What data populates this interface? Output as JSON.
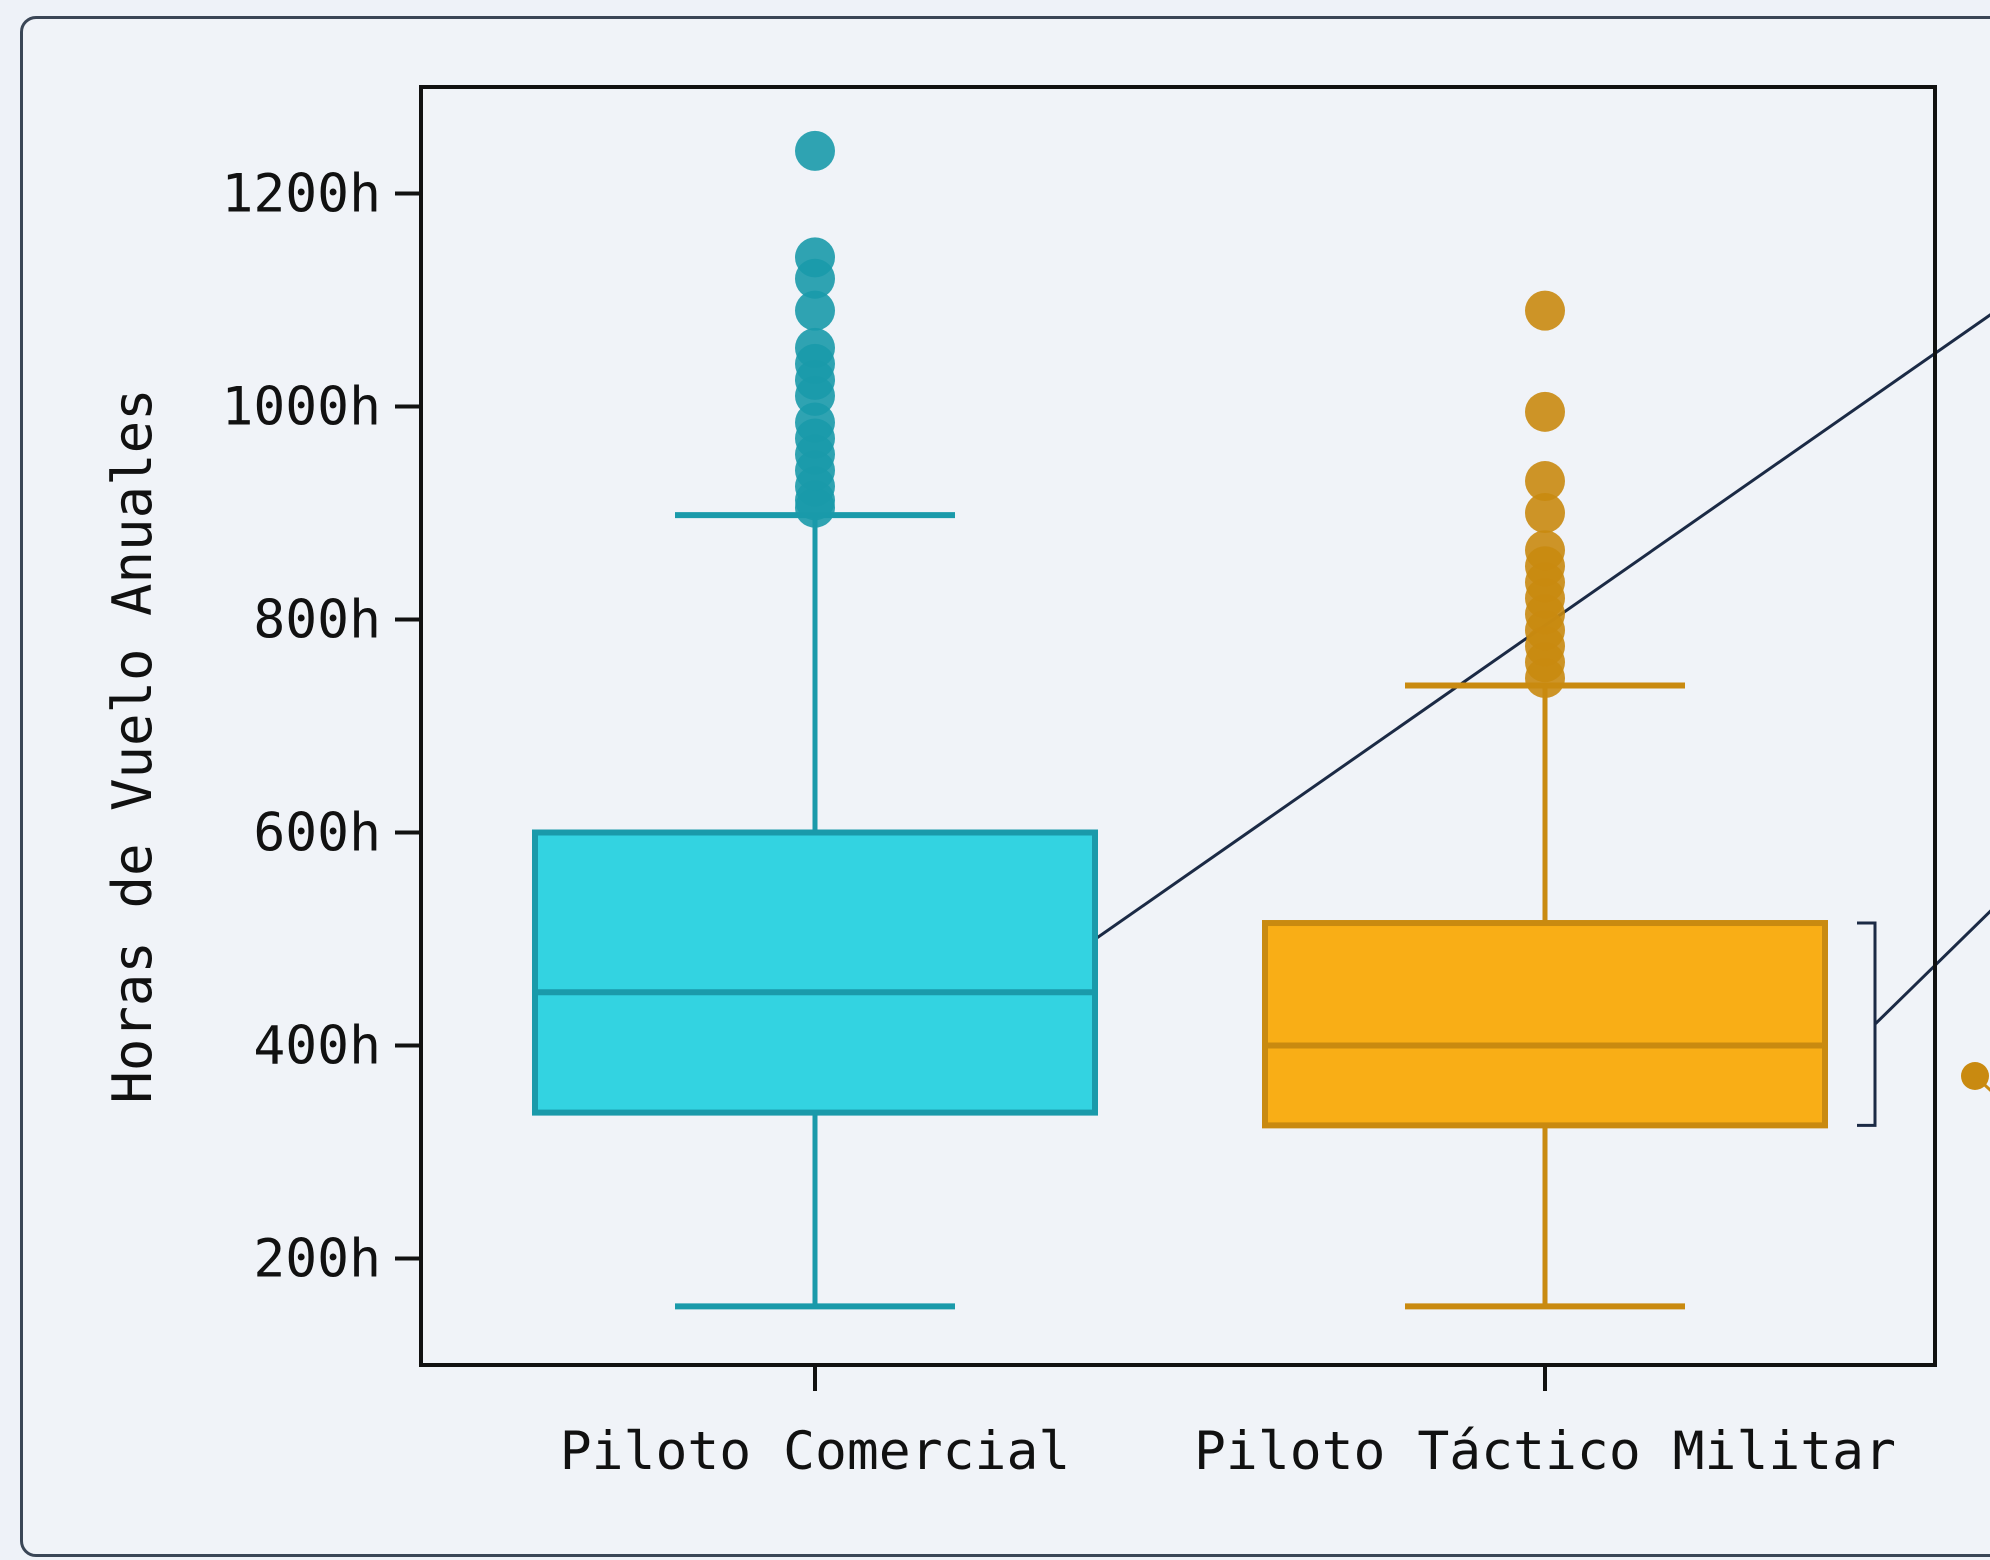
{
  "chart_data": {
    "type": "box",
    "title": "",
    "xlabel": "",
    "ylabel": "Horas de Vuelo Anuales",
    "ylim": [
      100,
      1300
    ],
    "yticks": [
      200,
      400,
      600,
      800,
      1000,
      1200
    ],
    "ytick_labels": [
      "200h",
      "400h",
      "600h",
      "800h",
      "1000h",
      "1200h"
    ],
    "categories": [
      "Piloto Comercial",
      "Piloto Táctico Militar"
    ],
    "grid": false,
    "legend": "none",
    "series": [
      {
        "category": "Piloto Comercial",
        "color": "#33d3e1",
        "edge_color": "#1a9aaa",
        "whisker_low": 155,
        "q1": 337,
        "median": 450,
        "q3": 600,
        "whisker_high": 898,
        "outliers": [
          905,
          912,
          925,
          940,
          955,
          970,
          985,
          1010,
          1025,
          1040,
          1055,
          1090,
          1120,
          1140,
          1240
        ]
      },
      {
        "category": "Piloto Táctico Militar",
        "color": "#f9ae16",
        "edge_color": "#c98a10",
        "whisker_low": 155,
        "q1": 325,
        "median": 400,
        "q3": 515,
        "whisker_high": 738,
        "outliers": [
          745,
          760,
          775,
          790,
          805,
          820,
          835,
          850,
          865,
          900,
          930,
          995,
          1090
        ]
      }
    ],
    "annotations": {
      "line_color": "#1b2a45"
    }
  }
}
